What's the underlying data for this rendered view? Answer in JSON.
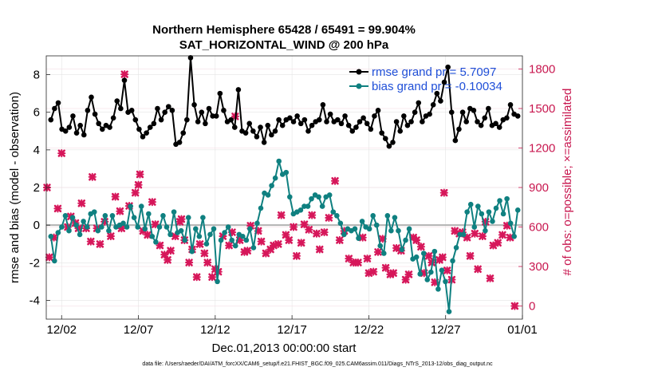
{
  "chart_data": {
    "type": "line",
    "title": "Northern Hemisphere 65428 / 65491 = 99.904%",
    "subtitle": "SAT_HORIZONTAL_WIND @ 200 hPa",
    "xlabel": "Dec.01,2013 00:00:00 start",
    "ylabel": "rmse and bias (model - observation)",
    "ylabel_right": "# of obs: o=possible; ×=assimilated",
    "footnote": "data file: /Users/raeder/DAI/ATM_forcXX/CAM6_setup/f.e21.FHIST_BGC.f09_025.CAM6assim.011/Diags_NTrS_2013-12/obs_diag_output.nc",
    "x_ticks": [
      "12/02",
      "12/07",
      "12/12",
      "12/17",
      "12/22",
      "12/27",
      "01/01"
    ],
    "y_ticks": [
      "-4",
      "-2",
      "0",
      "2",
      "4",
      "6",
      "8"
    ],
    "y2_ticks": [
      "0",
      "300",
      "600",
      "900",
      "1200",
      "1500",
      "1800"
    ],
    "ylim": [
      -5,
      9
    ],
    "y2lim": [
      -100,
      1900
    ],
    "x_day_range": [
      1,
      32
    ],
    "zero_line": true,
    "colors": {
      "rmse": "#000000",
      "bias": "#0f8080",
      "obs": "#d6175a",
      "right_axis": "#c8174f"
    },
    "series": [
      {
        "name": "rmse grand pr = 5.7097",
        "values": [
          5.6,
          6.2,
          6.5,
          5.1,
          5.0,
          5.2,
          5.8,
          4.9,
          5.3,
          4.8,
          6.1,
          6.8,
          5.9,
          5.4,
          5.1,
          5.3,
          5.2,
          5.7,
          6.6,
          6.2,
          7.7,
          6.0,
          6.1,
          5.6,
          5.1,
          4.7,
          4.9,
          5.2,
          5.4,
          6.2,
          5.6,
          6.0,
          6.3,
          6.1,
          4.3,
          4.4,
          4.9,
          5.6,
          8.9,
          6.4,
          5.5,
          6.0,
          5.4,
          6.2,
          5.8,
          5.8,
          7.0,
          6.1,
          5.5,
          5.6,
          5.2,
          7.2,
          5.0,
          4.9,
          5.4,
          5.0,
          4.7,
          5.2,
          4.4,
          5.3,
          4.8,
          5.0,
          5.6,
          5.3,
          5.6,
          5.7,
          5.5,
          5.8,
          5.4,
          5.6,
          5.0,
          5.3,
          5.5,
          5.6,
          6.4,
          5.5,
          5.9,
          5.5,
          5.6,
          5.4,
          5.8,
          5.3,
          5.0,
          5.2,
          5.5,
          5.7,
          5.4,
          5.1,
          5.8,
          6.1,
          4.9,
          4.6,
          4.2,
          4.4,
          5.5,
          5.0,
          5.8,
          5.3,
          5.5,
          6.0,
          6.5,
          5.5,
          5.8,
          5.9,
          6.4,
          7.0,
          6.6,
          7.6,
          8.4,
          6.0,
          4.5,
          5.1,
          6.0,
          5.5,
          6.2,
          6.1,
          5.5,
          5.3,
          5.7,
          6.2,
          5.3,
          5.4,
          5.2,
          5.6,
          5.7,
          6.4,
          5.9,
          5.8
        ]
      },
      {
        "name": "bias grand pr = -0.10034",
        "values": [
          -0.6,
          -1.9,
          -0.4,
          -0.1,
          0.5,
          -0.3,
          0.4,
          0.0,
          -0.5,
          0.2,
          -0.1,
          0.6,
          0.7,
          -0.3,
          -0.1,
          0.5,
          -0.3,
          0.5,
          -0.1,
          0.0,
          0.1,
          -0.1,
          1.0,
          0.4,
          -0.1,
          1.0,
          -0.2,
          0.6,
          -0.6,
          -0.9,
          -0.1,
          0.5,
          -0.1,
          -0.5,
          0.7,
          -0.4,
          -0.3,
          -0.8,
          0.4,
          -1.4,
          -0.2,
          -0.6,
          0.4,
          -1.0,
          -0.5,
          -0.2,
          -3.0,
          -0.8,
          -0.4,
          -0.1,
          -0.8,
          -1.1,
          -0.5,
          -0.6,
          -0.8,
          -0.2,
          -1.2,
          0.1,
          0.9,
          1.7,
          1.6,
          2.1,
          2.5,
          3.4,
          2.7,
          2.8,
          1.5,
          0.6,
          0.7,
          0.8,
          1.0,
          1.0,
          1.4,
          1.6,
          1.5,
          1.0,
          1.5,
          1.6,
          0.7,
          0.5,
          0.1,
          -0.5,
          -0.2,
          -0.3,
          -0.2,
          -0.7,
          0.2,
          -0.1,
          -0.2,
          0.5,
          0.0,
          -1.1,
          -1.5,
          0.5,
          -0.3,
          0.4,
          -0.3,
          -1.3,
          -0.8,
          -0.2,
          -1.8,
          -1.7,
          -2.6,
          -1.5,
          -2.9,
          -2.5,
          -1.4,
          -3.4,
          -2.4,
          -3.0,
          -4.6,
          -1.9,
          -1.2,
          -0.5,
          -0.5,
          0.7,
          1.1,
          -0.1,
          1.0,
          0.6,
          -0.3,
          0.7,
          0.2,
          0.9,
          1.3,
          0.6,
          1.4,
          0.1,
          -0.6,
          0.8
        ]
      }
    ],
    "obs_points": [
      [
        1.05,
        900
      ],
      [
        1.2,
        370
      ],
      [
        1.5,
        520
      ],
      [
        1.75,
        740
      ],
      [
        2.0,
        1160
      ],
      [
        2.4,
        600
      ],
      [
        2.6,
        680
      ],
      [
        2.9,
        630
      ],
      [
        3.1,
        590
      ],
      [
        3.3,
        780
      ],
      [
        3.6,
        590
      ],
      [
        3.9,
        490
      ],
      [
        4.0,
        980
      ],
      [
        4.3,
        590
      ],
      [
        4.5,
        470
      ],
      [
        4.8,
        640
      ],
      [
        5.2,
        530
      ],
      [
        5.5,
        830
      ],
      [
        5.8,
        720
      ],
      [
        5.9,
        590
      ],
      [
        6.1,
        1760
      ],
      [
        6.4,
        760
      ],
      [
        6.8,
        860
      ],
      [
        7.0,
        920
      ],
      [
        7.1,
        1000
      ],
      [
        7.3,
        570
      ],
      [
        7.6,
        540
      ],
      [
        7.9,
        790
      ],
      [
        8.1,
        620
      ],
      [
        8.4,
        460
      ],
      [
        8.7,
        390
      ],
      [
        8.9,
        350
      ],
      [
        9.1,
        420
      ],
      [
        9.4,
        530
      ],
      [
        9.7,
        640
      ],
      [
        9.8,
        660
      ],
      [
        10.0,
        500
      ],
      [
        10.3,
        330
      ],
      [
        10.5,
        430
      ],
      [
        10.8,
        220
      ],
      [
        11.0,
        470
      ],
      [
        11.3,
        400
      ],
      [
        11.5,
        330
      ],
      [
        11.8,
        220
      ],
      [
        12.0,
        280
      ],
      [
        12.2,
        260
      ],
      [
        12.5,
        530
      ],
      [
        12.9,
        460
      ],
      [
        13.1,
        560
      ],
      [
        13.3,
        1440
      ],
      [
        13.6,
        500
      ],
      [
        13.9,
        410
      ],
      [
        14.1,
        420
      ],
      [
        14.3,
        610
      ],
      [
        14.8,
        570
      ],
      [
        15.0,
        490
      ],
      [
        15.3,
        400
      ],
      [
        15.6,
        430
      ],
      [
        15.8,
        460
      ],
      [
        16.1,
        470
      ],
      [
        16.3,
        690
      ],
      [
        16.6,
        540
      ],
      [
        16.8,
        500
      ],
      [
        17.1,
        600
      ],
      [
        17.3,
        380
      ],
      [
        17.6,
        480
      ],
      [
        17.8,
        620
      ],
      [
        18.1,
        580
      ],
      [
        18.3,
        690
      ],
      [
        18.6,
        550
      ],
      [
        18.8,
        430
      ],
      [
        19.1,
        560
      ],
      [
        19.4,
        670
      ],
      [
        19.8,
        950
      ],
      [
        20.1,
        500
      ],
      [
        20.4,
        570
      ],
      [
        20.7,
        360
      ],
      [
        21.0,
        330
      ],
      [
        21.3,
        330
      ],
      [
        21.6,
        520
      ],
      [
        21.9,
        360
      ],
      [
        22.0,
        250
      ],
      [
        22.3,
        260
      ],
      [
        22.6,
        410
      ],
      [
        22.9,
        510
      ],
      [
        23.1,
        290
      ],
      [
        23.4,
        240
      ],
      [
        23.6,
        250
      ],
      [
        23.8,
        440
      ],
      [
        24.1,
        420
      ],
      [
        24.4,
        200
      ],
      [
        24.6,
        240
      ],
      [
        24.9,
        520
      ],
      [
        25.1,
        500
      ],
      [
        25.4,
        450
      ],
      [
        25.6,
        250
      ],
      [
        25.9,
        380
      ],
      [
        26.1,
        330
      ],
      [
        26.3,
        180
      ],
      [
        26.6,
        350
      ],
      [
        26.8,
        370
      ],
      [
        26.9,
        860
      ],
      [
        27.1,
        270
      ],
      [
        27.4,
        200
      ],
      [
        27.6,
        570
      ],
      [
        27.9,
        550
      ],
      [
        28.1,
        560
      ],
      [
        28.4,
        520
      ],
      [
        28.6,
        380
      ],
      [
        28.9,
        550
      ],
      [
        29.1,
        280
      ],
      [
        29.4,
        530
      ],
      [
        29.6,
        640
      ],
      [
        29.9,
        210
      ],
      [
        30.1,
        460
      ],
      [
        30.4,
        480
      ],
      [
        30.7,
        540
      ],
      [
        31.0,
        610
      ],
      [
        31.2,
        520
      ],
      [
        31.5,
        0
      ]
    ]
  }
}
